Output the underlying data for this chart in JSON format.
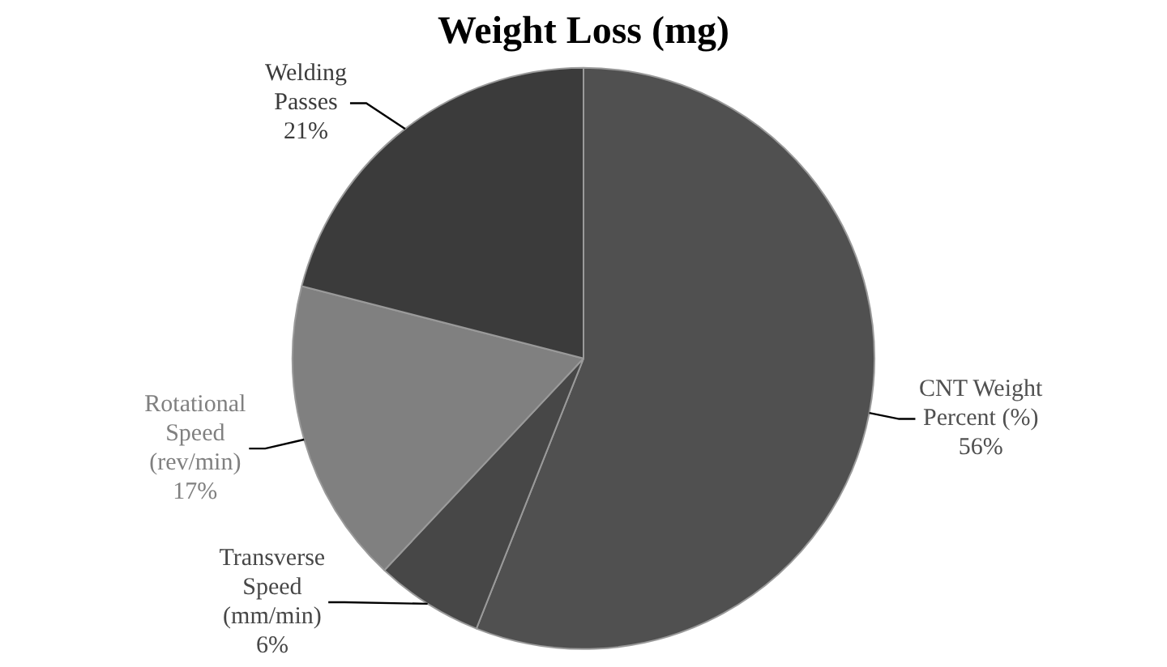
{
  "chart_data": {
    "type": "pie",
    "title": "Weight Loss (mg)",
    "categories": [
      "CNT Weight Percent (%)",
      "Transverse Speed (mm/min)",
      "Rotational Speed (rev/min)",
      "Welding Passes"
    ],
    "values": [
      56,
      6,
      17,
      21
    ],
    "value_labels": [
      "56%",
      "6%",
      "17%",
      "21%"
    ],
    "colors": [
      "#505050",
      "#474747",
      "#808080",
      "#3b3b3b"
    ],
    "legend": false
  }
}
